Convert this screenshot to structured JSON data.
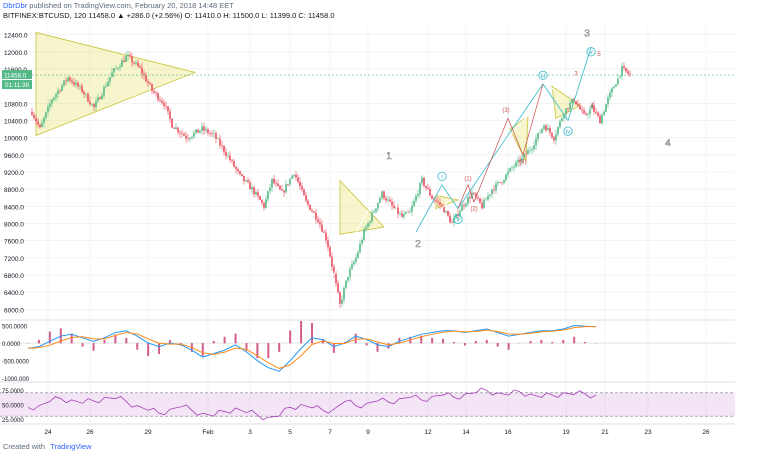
{
  "header": {
    "user": "DbrDbr",
    "published_text": "published on TradingView.com, February 20, 2018 14:48 EET",
    "symbol": "BITFINEX:BTCUSD, 120",
    "ohlc": "11458.0 ▲ +286.0 (+2.56%) O: 11410.0 H: 11500.0 L: 11399.0 C: 11458.0"
  },
  "footer": {
    "created_with": "Created with",
    "brand": "TradingView"
  },
  "colors": {
    "up": "#53b987",
    "down": "#eb4d5c",
    "wave": "#ffffff",
    "triangle": "#e6e36b",
    "subwave": "#33b9c9",
    "redwave": "#c94d4d",
    "macd": "#2196f3",
    "signal": "#ff8c1a",
    "hist": "#c2185b",
    "rsi": "#9c27b0",
    "grid": "#e9ecf1"
  },
  "chart_data": [
    {
      "type": "candlestick",
      "symbol": "BITFINEX:BTCUSD",
      "interval": "120",
      "ylim": [
        5800,
        12600
      ],
      "y_ticks": [
        "12400.0",
        "12000.0",
        "11600.0",
        "10800.0",
        "10400.0",
        "10000.0",
        "9600.0",
        "9200.0",
        "8800.0",
        "8400.0",
        "8000.0",
        "7600.0",
        "7200.0",
        "6800.0",
        "6400.0",
        "6000.0"
      ],
      "x_ticks": [
        "24",
        "26",
        "29",
        "Feb",
        "3",
        "5",
        "7",
        "9",
        "12",
        "14",
        "16",
        "19",
        "21",
        "23",
        "26"
      ],
      "last_price_label": "11458.0",
      "countdown_label": "01:11:38",
      "price_path": [
        [
          0,
          10600
        ],
        [
          8,
          10200
        ],
        [
          20,
          10900
        ],
        [
          36,
          11400
        ],
        [
          50,
          11100
        ],
        [
          62,
          10700
        ],
        [
          80,
          11500
        ],
        [
          95,
          11900
        ],
        [
          108,
          11600
        ],
        [
          120,
          11100
        ],
        [
          132,
          10800
        ],
        [
          140,
          10300
        ],
        [
          155,
          10000
        ],
        [
          170,
          10200
        ],
        [
          182,
          10050
        ],
        [
          195,
          9600
        ],
        [
          208,
          9100
        ],
        [
          220,
          8800
        ],
        [
          232,
          8400
        ],
        [
          240,
          9000
        ],
        [
          250,
          8700
        ],
        [
          262,
          9200
        ],
        [
          274,
          8500
        ],
        [
          286,
          8100
        ],
        [
          295,
          7600
        ],
        [
          302,
          6800
        ],
        [
          308,
          6100
        ],
        [
          316,
          6800
        ],
        [
          324,
          7200
        ],
        [
          332,
          7800
        ],
        [
          340,
          8200
        ],
        [
          350,
          8700
        ],
        [
          360,
          8400
        ],
        [
          370,
          8150
        ],
        [
          378,
          8250
        ],
        [
          390,
          9000
        ],
        [
          400,
          8600
        ],
        [
          410,
          8400
        ],
        [
          420,
          8000
        ],
        [
          430,
          8400
        ],
        [
          440,
          8700
        ],
        [
          450,
          8400
        ],
        [
          460,
          8800
        ],
        [
          470,
          9000
        ],
        [
          480,
          9300
        ],
        [
          490,
          9500
        ],
        [
          500,
          9800
        ],
        [
          512,
          10300
        ],
        [
          522,
          10000
        ],
        [
          532,
          10600
        ],
        [
          542,
          10900
        ],
        [
          552,
          10500
        ],
        [
          560,
          10700
        ],
        [
          568,
          10400
        ],
        [
          576,
          10900
        ],
        [
          584,
          11300
        ],
        [
          590,
          11600
        ],
        [
          598,
          11458
        ]
      ],
      "elliott_waves": {
        "primary": [
          {
            "label": "1",
            "price": 9300
          },
          {
            "label": "2",
            "price": 7700
          },
          {
            "label": "3",
            "price": 12100
          },
          {
            "label": "4",
            "price": 10100
          }
        ],
        "minor": [
          {
            "label": "i",
            "price": 8950
          },
          {
            "label": "ii",
            "price": 8300
          },
          {
            "label": "iii",
            "price": 11300
          },
          {
            "label": "iv",
            "price": 10300
          },
          {
            "label": "v",
            "price": 12000
          }
        ],
        "sub": [
          "(1)",
          "(2)",
          "(3)",
          "(4)",
          "3",
          "4",
          "5"
        ]
      },
      "patterns": [
        "symmetrical triangle",
        "symmetrical triangle",
        "triangle",
        "triangle"
      ]
    },
    {
      "type": "line",
      "indicator": "MACD",
      "ylim": [
        -1050,
        600
      ],
      "y_ticks": [
        "500.0000",
        "0.0000",
        "-500.0000",
        "-1000.000"
      ],
      "series": [
        {
          "name": "",
          "values": [
            -150,
            -100,
            50,
            200,
            250,
            150,
            50,
            150,
            300,
            350,
            200,
            0,
            -100,
            0,
            -50,
            -200,
            -400,
            -300,
            -200,
            -50,
            -250,
            -500,
            -700,
            -800,
            -500,
            -150,
            150,
            100,
            -100,
            0,
            200,
            100,
            -50,
            -100,
            50,
            150,
            250,
            300,
            350,
            350,
            300,
            350,
            400,
            300,
            200,
            250,
            300,
            350,
            350,
            400,
            500,
            480,
            470
          ]
        },
        {
          "name": "",
          "values": [
            -150,
            -130,
            -60,
            60,
            160,
            180,
            120,
            120,
            220,
            300,
            260,
            120,
            0,
            -30,
            -30,
            -120,
            -280,
            -320,
            -260,
            -140,
            -180,
            -360,
            -560,
            -720,
            -620,
            -360,
            -40,
            60,
            -10,
            -10,
            110,
            120,
            30,
            -50,
            0,
            90,
            180,
            250,
            310,
            340,
            320,
            330,
            370,
            330,
            260,
            250,
            280,
            320,
            340,
            370,
            440,
            470,
            470
          ]
        }
      ]
    },
    {
      "type": "line",
      "indicator": "RSI",
      "ylim": [
        20,
        85
      ],
      "y_ticks": [
        "75.0000",
        "50.0000",
        "25.0000"
      ],
      "bands": [
        30,
        70
      ],
      "series": [
        {
          "name": "",
          "values": [
            45,
            48,
            55,
            60,
            58,
            52,
            56,
            62,
            60,
            55,
            48,
            40,
            35,
            42,
            46,
            40,
            35,
            30,
            38,
            44,
            36,
            32,
            28,
            30,
            45,
            50,
            44,
            40,
            42,
            55,
            48,
            52,
            56,
            54,
            60,
            62,
            58,
            64,
            66,
            62,
            68,
            70,
            74,
            70,
            66,
            72,
            68,
            62,
            66,
            70,
            67,
            68,
            66
          ]
        }
      ]
    }
  ]
}
